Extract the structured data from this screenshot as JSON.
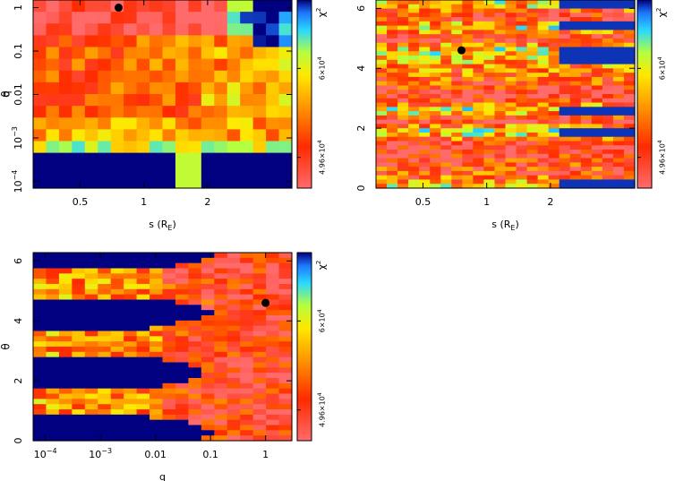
{
  "chart_data": [
    {
      "type": "heatmap",
      "panel": "s-q",
      "xlabel": "s (R_E)",
      "xlabel_main": "s (R",
      "xlabel_sub": "E",
      "xlabel_close": ")",
      "ylabel": "q",
      "xscale": "log",
      "yscale": "log",
      "xlim": [
        0.3,
        5.0
      ],
      "ylim": [
        7e-05,
        1.5
      ],
      "xticks": [
        {
          "value": 0.5,
          "label": "0.5"
        },
        {
          "value": 1,
          "label": "1"
        },
        {
          "value": 2,
          "label": "2"
        }
      ],
      "yticks": [
        {
          "value": 1,
          "label": "1"
        },
        {
          "value": 0.1,
          "label": "0.1"
        },
        {
          "value": 0.01,
          "label": "0.01"
        },
        {
          "value": 0.001,
          "label": "10",
          "exp": "−3"
        },
        {
          "value": 0.0001,
          "label": "10",
          "exp": "−4"
        }
      ],
      "best_fit": {
        "x": 0.76,
        "y": 1.0
      },
      "colorbar": {
        "label": "χ",
        "label_exp": "2",
        "ticks": [
          {
            "value": 4.96,
            "label": "4.96×10",
            "exp": "4"
          },
          {
            "value": 6.0,
            "label": "6×10",
            "exp": "4"
          }
        ]
      }
    },
    {
      "type": "heatmap",
      "panel": "s-theta",
      "xlabel": "s (R_E)",
      "xlabel_main": "s (R",
      "xlabel_sub": "E",
      "xlabel_close": ")",
      "ylabel": "θ",
      "xscale": "log",
      "yscale": "linear",
      "xlim": [
        0.3,
        5.0
      ],
      "ylim": [
        0,
        6.28
      ],
      "xticks": [
        {
          "value": 0.5,
          "label": "0.5"
        },
        {
          "value": 1,
          "label": "1"
        },
        {
          "value": 2,
          "label": "2"
        }
      ],
      "yticks": [
        {
          "value": 0,
          "label": "0"
        },
        {
          "value": 2,
          "label": "2"
        },
        {
          "value": 4,
          "label": "4"
        },
        {
          "value": 6,
          "label": "6"
        }
      ],
      "best_fit": {
        "x": 0.76,
        "y": 4.6
      },
      "colorbar": {
        "label": "χ",
        "label_exp": "2",
        "ticks": [
          {
            "value": 4.96,
            "label": "4.96×10",
            "exp": "4"
          },
          {
            "value": 6.0,
            "label": "6×10",
            "exp": "4"
          }
        ]
      }
    },
    {
      "type": "heatmap",
      "panel": "q-theta",
      "xlabel": "q",
      "ylabel": "θ",
      "xscale": "log",
      "yscale": "linear",
      "xlim": [
        6e-05,
        3.0
      ],
      "ylim": [
        0,
        6.28
      ],
      "xticks": [
        {
          "value": 0.0001,
          "label": "10",
          "exp": "−4"
        },
        {
          "value": 0.001,
          "label": "10",
          "exp": "−3"
        },
        {
          "value": 0.01,
          "label": "0.01"
        },
        {
          "value": 0.1,
          "label": "0.1"
        },
        {
          "value": 1,
          "label": "1"
        }
      ],
      "yticks": [
        {
          "value": 0,
          "label": "0"
        },
        {
          "value": 2,
          "label": "2"
        },
        {
          "value": 4,
          "label": "4"
        },
        {
          "value": 6,
          "label": "6"
        }
      ],
      "best_fit": {
        "x": 1.0,
        "y": 4.6
      },
      "colorbar": {
        "label": "χ",
        "label_exp": "2",
        "ticks": [
          {
            "value": 4.96,
            "label": "4.96×10",
            "exp": "4"
          },
          {
            "value": 6.0,
            "label": "6×10",
            "exp": "4"
          }
        ]
      }
    }
  ],
  "colors": {
    "min": "#ff6b6b",
    "red": "#ff2a00",
    "orange": "#ff8c00",
    "yellow": "#ffe800",
    "green": "#b4ff40",
    "cyan": "#28d8ff",
    "blue": "#1e78ff",
    "max": "#000080"
  }
}
